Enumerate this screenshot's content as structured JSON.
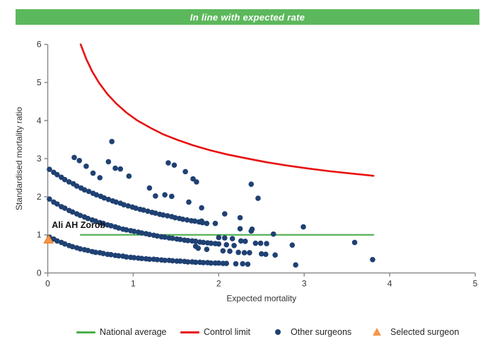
{
  "banner": {
    "text": "In line with expected rate",
    "bg_color": "#5cb85c",
    "text_color": "#ffffff"
  },
  "selected_surgeon": {
    "name": "Ali AH Zorob"
  },
  "colors": {
    "national_average": "#4cae4c",
    "control_limit": "#e81010",
    "other_surgeons": "#1f4173",
    "selected_surgeon_fill": "#f79646",
    "selected_surgeon_stroke": "#e07b1e",
    "axis": "#8c8c8c",
    "tick_text": "#333333"
  },
  "legend": {
    "items": [
      {
        "label": "National average",
        "marker": "line",
        "color": "#4cae4c"
      },
      {
        "label": "Control limit",
        "marker": "line",
        "color": "#e81010"
      },
      {
        "label": "Other surgeons",
        "marker": "dot",
        "color": "#1f4173"
      },
      {
        "label": "Selected surgeon",
        "marker": "triangle",
        "color": "#f79646"
      }
    ]
  },
  "chart_data": {
    "type": "scatter",
    "title": "In line with expected rate",
    "xlabel": "Expected mortality",
    "ylabel": "Standardised mortality ratio",
    "xlim": [
      0,
      5
    ],
    "ylim": [
      0,
      6
    ],
    "x_ticks": [
      0,
      1,
      2,
      3,
      4,
      5
    ],
    "y_ticks": [
      0,
      1,
      2,
      3,
      4,
      5,
      6
    ],
    "grid": false,
    "legend_position": "bottom",
    "series": [
      {
        "name": "National average",
        "type": "line",
        "color": "#4cae4c",
        "points": [
          [
            0.385,
            1.0
          ],
          [
            3.81,
            1.0
          ]
        ]
      },
      {
        "name": "Control limit",
        "type": "line",
        "color": "#e81010",
        "points": [
          [
            0.385,
            6.0
          ],
          [
            0.45,
            5.62
          ],
          [
            0.52,
            5.29
          ],
          [
            0.6,
            4.99
          ],
          [
            0.7,
            4.69
          ],
          [
            0.8,
            4.45
          ],
          [
            0.92,
            4.21
          ],
          [
            1.05,
            4.0
          ],
          [
            1.2,
            3.81
          ],
          [
            1.35,
            3.64
          ],
          [
            1.52,
            3.49
          ],
          [
            1.7,
            3.35
          ],
          [
            1.9,
            3.22
          ],
          [
            2.1,
            3.11
          ],
          [
            2.32,
            3.01
          ],
          [
            2.55,
            2.91
          ],
          [
            2.8,
            2.82
          ],
          [
            3.05,
            2.74
          ],
          [
            3.3,
            2.67
          ],
          [
            3.55,
            2.61
          ],
          [
            3.81,
            2.55
          ]
        ]
      },
      {
        "name": "Other surgeons",
        "type": "scatter",
        "color": "#1f4173",
        "points": [
          [
            0.02,
            0.94
          ],
          [
            0.07,
            0.89
          ],
          [
            0.11,
            0.84
          ],
          [
            0.16,
            0.8
          ],
          [
            0.2,
            0.76
          ],
          [
            0.25,
            0.72
          ],
          [
            0.29,
            0.69
          ],
          [
            0.34,
            0.66
          ],
          [
            0.38,
            0.63
          ],
          [
            0.43,
            0.61
          ],
          [
            0.47,
            0.59
          ],
          [
            0.52,
            0.56
          ],
          [
            0.56,
            0.54
          ],
          [
            0.61,
            0.53
          ],
          [
            0.65,
            0.51
          ],
          [
            0.7,
            0.49
          ],
          [
            0.74,
            0.48
          ],
          [
            0.79,
            0.46
          ],
          [
            0.83,
            0.45
          ],
          [
            0.88,
            0.44
          ],
          [
            0.92,
            0.42
          ],
          [
            0.97,
            0.41
          ],
          [
            1.01,
            0.4
          ],
          [
            1.06,
            0.39
          ],
          [
            1.1,
            0.38
          ],
          [
            1.15,
            0.37
          ],
          [
            1.19,
            0.36
          ],
          [
            1.24,
            0.36
          ],
          [
            1.28,
            0.35
          ],
          [
            1.33,
            0.34
          ],
          [
            1.37,
            0.33
          ],
          [
            1.42,
            0.33
          ],
          [
            1.46,
            0.32
          ],
          [
            1.51,
            0.31
          ],
          [
            1.55,
            0.31
          ],
          [
            1.6,
            0.3
          ],
          [
            1.64,
            0.29
          ],
          [
            1.69,
            0.29
          ],
          [
            1.73,
            0.28
          ],
          [
            1.78,
            0.28
          ],
          [
            1.82,
            0.27
          ],
          [
            1.87,
            0.27
          ],
          [
            1.91,
            0.26
          ],
          [
            1.96,
            0.26
          ],
          [
            2.0,
            0.26
          ],
          [
            2.05,
            0.25
          ],
          [
            2.09,
            0.25
          ],
          [
            0.02,
            1.94
          ],
          [
            0.07,
            1.86
          ],
          [
            0.11,
            1.81
          ],
          [
            0.16,
            1.74
          ],
          [
            0.2,
            1.7
          ],
          [
            0.25,
            1.64
          ],
          [
            0.29,
            1.6
          ],
          [
            0.34,
            1.55
          ],
          [
            0.38,
            1.51
          ],
          [
            0.43,
            1.47
          ],
          [
            0.47,
            1.43
          ],
          [
            0.52,
            1.39
          ],
          [
            0.56,
            1.36
          ],
          [
            0.61,
            1.32
          ],
          [
            0.65,
            1.3
          ],
          [
            0.7,
            1.26
          ],
          [
            0.74,
            1.24
          ],
          [
            0.79,
            1.21
          ],
          [
            0.83,
            1.18
          ],
          [
            0.88,
            1.15
          ],
          [
            0.92,
            1.13
          ],
          [
            0.97,
            1.11
          ],
          [
            1.01,
            1.09
          ],
          [
            1.06,
            1.07
          ],
          [
            1.1,
            1.05
          ],
          [
            1.15,
            1.03
          ],
          [
            1.19,
            1.01
          ],
          [
            1.24,
            0.99
          ],
          [
            1.28,
            0.97
          ],
          [
            1.33,
            0.95
          ],
          [
            1.37,
            0.94
          ],
          [
            1.42,
            0.92
          ],
          [
            1.46,
            0.91
          ],
          [
            1.51,
            0.89
          ],
          [
            1.55,
            0.88
          ],
          [
            1.6,
            0.86
          ],
          [
            1.64,
            0.85
          ],
          [
            1.69,
            0.84
          ],
          [
            1.73,
            0.83
          ],
          [
            1.78,
            0.81
          ],
          [
            1.82,
            0.8
          ],
          [
            1.87,
            0.79
          ],
          [
            1.91,
            0.78
          ],
          [
            1.96,
            0.77
          ],
          [
            2.0,
            0.76
          ],
          [
            2.09,
            0.74
          ],
          [
            2.18,
            0.72
          ],
          [
            0.02,
            2.72
          ],
          [
            0.07,
            2.64
          ],
          [
            0.11,
            2.58
          ],
          [
            0.16,
            2.51
          ],
          [
            0.2,
            2.45
          ],
          [
            0.25,
            2.39
          ],
          [
            0.3,
            2.34
          ],
          [
            0.34,
            2.28
          ],
          [
            0.39,
            2.23
          ],
          [
            0.43,
            2.18
          ],
          [
            0.48,
            2.14
          ],
          [
            0.53,
            2.09
          ],
          [
            0.57,
            2.05
          ],
          [
            0.62,
            2.01
          ],
          [
            0.66,
            1.97
          ],
          [
            0.71,
            1.93
          ],
          [
            0.76,
            1.89
          ],
          [
            0.8,
            1.86
          ],
          [
            0.85,
            1.83
          ],
          [
            0.89,
            1.79
          ],
          [
            0.94,
            1.76
          ],
          [
            0.99,
            1.73
          ],
          [
            1.03,
            1.7
          ],
          [
            1.08,
            1.67
          ],
          [
            1.12,
            1.65
          ],
          [
            1.17,
            1.62
          ],
          [
            1.22,
            1.59
          ],
          [
            1.26,
            1.57
          ],
          [
            1.31,
            1.54
          ],
          [
            1.35,
            1.52
          ],
          [
            1.4,
            1.5
          ],
          [
            1.45,
            1.48
          ],
          [
            1.49,
            1.45
          ],
          [
            1.54,
            1.43
          ],
          [
            1.58,
            1.41
          ],
          [
            1.63,
            1.39
          ],
          [
            1.68,
            1.37
          ],
          [
            1.72,
            1.36
          ],
          [
            1.77,
            1.34
          ],
          [
            1.81,
            1.32
          ],
          [
            1.86,
            1.3
          ],
          [
            0.31,
            3.03
          ],
          [
            0.37,
            2.95
          ],
          [
            0.45,
            2.8
          ],
          [
            0.53,
            2.62
          ],
          [
            0.61,
            2.5
          ],
          [
            0.71,
            2.92
          ],
          [
            0.75,
            3.45
          ],
          [
            0.79,
            2.75
          ],
          [
            0.85,
            2.73
          ],
          [
            0.95,
            2.54
          ],
          [
            1.19,
            2.23
          ],
          [
            1.26,
            2.02
          ],
          [
            1.37,
            2.05
          ],
          [
            1.45,
            2.01
          ],
          [
            1.41,
            2.89
          ],
          [
            1.48,
            2.83
          ],
          [
            1.61,
            2.66
          ],
          [
            1.7,
            2.47
          ],
          [
            1.74,
            2.39
          ],
          [
            1.65,
            1.86
          ],
          [
            1.8,
            1.71
          ],
          [
            1.8,
            1.36
          ],
          [
            1.96,
            1.3
          ],
          [
            2.07,
            1.55
          ],
          [
            2.25,
            1.45
          ],
          [
            2.25,
            1.16
          ],
          [
            2.39,
            1.15
          ],
          [
            2.38,
            2.33
          ],
          [
            2.46,
            1.96
          ],
          [
            2.38,
            1.1
          ],
          [
            2.64,
            1.02
          ],
          [
            2.99,
            1.21
          ],
          [
            2.0,
            0.93
          ],
          [
            2.07,
            0.92
          ],
          [
            2.16,
            0.9
          ],
          [
            2.26,
            0.84
          ],
          [
            2.31,
            0.83
          ],
          [
            2.43,
            0.78
          ],
          [
            2.49,
            0.78
          ],
          [
            2.56,
            0.77
          ],
          [
            2.86,
            0.73
          ],
          [
            1.73,
            0.7
          ],
          [
            1.76,
            0.65
          ],
          [
            1.86,
            0.62
          ],
          [
            2.05,
            0.58
          ],
          [
            2.13,
            0.57
          ],
          [
            2.23,
            0.54
          ],
          [
            2.3,
            0.53
          ],
          [
            2.36,
            0.53
          ],
          [
            2.5,
            0.5
          ],
          [
            2.55,
            0.49
          ],
          [
            2.66,
            0.47
          ],
          [
            2.2,
            0.24
          ],
          [
            2.28,
            0.24
          ],
          [
            2.34,
            0.23
          ],
          [
            2.9,
            0.21
          ],
          [
            3.59,
            0.8
          ],
          [
            3.8,
            0.35
          ]
        ]
      },
      {
        "name": "Selected surgeon",
        "type": "triangle",
        "color": "#f79646",
        "label": "Ali AH Zorob",
        "points": [
          [
            0.01,
            0.885
          ]
        ]
      }
    ]
  }
}
